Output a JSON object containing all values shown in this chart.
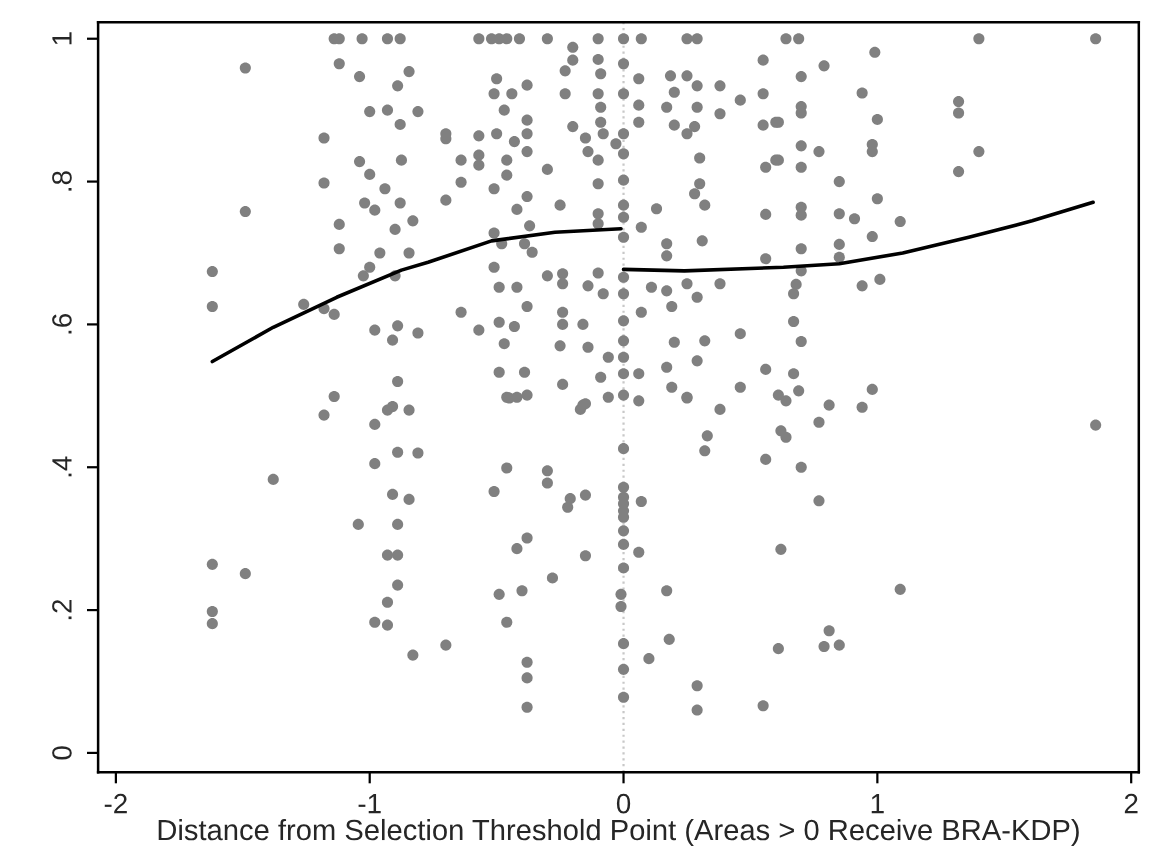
{
  "chart_data": {
    "type": "scatter",
    "xlabel": "Distance from Selection Threshold Point (Areas > 0 Receive BRA-KDP)",
    "xlim": [
      -2.07,
      2.03
    ],
    "xticks": [
      -2,
      -1,
      0,
      1,
      2
    ],
    "ylim": [
      -0.027,
      1.023
    ],
    "yticks": [
      {
        "value": 0,
        "label": "0"
      },
      {
        "value": 0.2,
        "label": ".2"
      },
      {
        "value": 0.4,
        "label": ".4"
      },
      {
        "value": 0.6,
        "label": ".6"
      },
      {
        "value": 0.8,
        "label": ".8"
      },
      {
        "value": 1,
        "label": "1"
      }
    ],
    "ref_lines": [
      {
        "axis": "x",
        "value": 0,
        "label": null,
        "color": "#c8c8c8",
        "line_style": "dotted"
      }
    ],
    "series": [
      {
        "color": "#808080",
        "marker": "circle",
        "x": [
          -1.49,
          -1.14,
          -1.12,
          -1.03,
          -0.93,
          -0.88,
          -1.12,
          -1.04,
          -0.845,
          -0.89,
          -1.0,
          -0.93,
          -0.81,
          -0.88,
          -1.18,
          -1.04,
          -0.875,
          -1.0,
          -1.18,
          -0.94,
          -1.02,
          -0.88,
          -0.98,
          -1.49,
          -0.83,
          -1.12,
          -0.9,
          -1.12,
          -0.96,
          -0.845,
          -1.62,
          -1.0,
          -1.025,
          -0.9,
          -1.62,
          -1.26,
          -1.18,
          -1.14,
          -0.98,
          -0.89,
          -0.91,
          -0.81,
          -0.89,
          -1.14,
          -0.91,
          -1.18,
          -0.93,
          -0.845,
          -0.98,
          -0.89,
          -0.81,
          -0.98,
          -1.38,
          -0.91,
          -0.845,
          -1.045,
          -0.89,
          -1.62,
          -1.49,
          -0.93,
          -0.89,
          -0.89,
          -0.93,
          -1.62,
          -1.62,
          -0.98,
          -0.93,
          -0.83,
          -0.57,
          -0.52,
          -0.49,
          -0.46,
          -0.41,
          -0.3,
          -0.1,
          0,
          0.07,
          0.25,
          0.29,
          -0.2,
          -0.2,
          -0.1,
          -0.5,
          -0.23,
          -0.09,
          0,
          0.06,
          0.185,
          0.25,
          0.29,
          0.38,
          0.55,
          -0.38,
          -0.44,
          -0.51,
          -0.23,
          -0.1,
          0,
          0.2,
          0.46,
          0.55,
          -0.47,
          0.06,
          0.17,
          0.29,
          -0.38,
          -0.09,
          -0.09,
          -0.2,
          0.2,
          0.28,
          0.38,
          0.55,
          0.6,
          -0.7,
          -0.7,
          -0.57,
          -0.5,
          -0.43,
          -0.38,
          -0.15,
          -0.08,
          0,
          0.06,
          0.25,
          -0.64,
          -0.57,
          -0.57,
          -0.46,
          -0.38,
          -0.14,
          -0.1,
          -0.03,
          0,
          0.3,
          0.56,
          0.6,
          -0.64,
          -0.51,
          -0.46,
          -0.3,
          -0.1,
          0,
          0.3,
          0.28,
          -0.7,
          -0.38,
          -0.25,
          -0.42,
          0,
          0.13,
          0.32,
          0.56,
          -0.1,
          -0.1,
          0,
          0.07,
          -0.51,
          -0.37,
          -0.48,
          -0.39,
          -0.36,
          0,
          0.17,
          0.17,
          0.31,
          0.56,
          -0.51,
          -0.3,
          -0.24,
          -0.1,
          0,
          -0.49,
          -0.42,
          -0.24,
          -0.14,
          -0.08,
          0,
          0.11,
          0.17,
          0.25,
          0.29,
          0.38,
          -0.64,
          -0.38,
          -0.24,
          0.07,
          0.19,
          -0.57,
          -0.49,
          -0.43,
          -0.24,
          -0.16,
          0,
          -0.47,
          -0.25,
          -0.14,
          0,
          0.2,
          0.32,
          0.46,
          -0.06,
          0,
          0.29,
          0.56,
          -0.49,
          -0.39,
          -0.24,
          -0.09,
          0,
          0.06,
          0.17,
          -0.45,
          -0.38,
          -0.16,
          0,
          0.19,
          0.25,
          0.46,
          0.64,
          0.69,
          1.4,
          1.86,
          0.99,
          0.79,
          0.7,
          0.94,
          0.7,
          0.7,
          1.32,
          1.32,
          1.0,
          0.61,
          0.7,
          0.77,
          0.98,
          0.98,
          1.4,
          0.61,
          0.7,
          1.32,
          0.85,
          1.0,
          0.7,
          0.7,
          0.85,
          0.91,
          1.09,
          0.98,
          0.7,
          0.85,
          0.85,
          0.7,
          0.94,
          1.01,
          0.68,
          0.67,
          0.67,
          0.7,
          0.67,
          0.61,
          0.69,
          0.98,
          0.64,
          0.81,
          0.94,
          0.77,
          0.62,
          0.64,
          0.7,
          0.77,
          1.86,
          0.62,
          1.09,
          0.61,
          0.79,
          0.85,
          0.81,
          -0.46,
          -0.42,
          -0.17,
          -0.15,
          -0.06,
          0.06,
          0.25,
          0.38,
          0.33,
          0.32,
          0.56,
          0,
          -0.46,
          -0.3,
          -0.3,
          -0.51,
          -0.21,
          -0.22,
          -0.15,
          0,
          0,
          0,
          0,
          0,
          0.07,
          0,
          0,
          -0.38,
          -0.42,
          -0.15,
          0.06,
          0,
          -0.28,
          -0.49,
          -0.4,
          -0.01,
          -0.01,
          0.17,
          -0.46,
          -0.7,
          0,
          0.18,
          -0.38,
          -0.38,
          0.1,
          0,
          0.29,
          0,
          -0.38,
          0.29,
          0.55
        ],
        "values": [
          0.959,
          1,
          1,
          1,
          1,
          1,
          0.965,
          0.947,
          0.954,
          0.934,
          0.898,
          0.9,
          0.898,
          0.88,
          0.861,
          0.828,
          0.83,
          0.81,
          0.798,
          0.79,
          0.77,
          0.77,
          0.76,
          0.758,
          0.745,
          0.74,
          0.733,
          0.706,
          0.7,
          0.7,
          0.674,
          0.68,
          0.668,
          0.668,
          0.625,
          0.628,
          0.622,
          0.614,
          0.592,
          0.598,
          0.578,
          0.588,
          0.52,
          0.499,
          0.485,
          0.473,
          0.48,
          0.48,
          0.46,
          0.421,
          0.42,
          0.405,
          0.383,
          0.362,
          0.355,
          0.32,
          0.32,
          0.264,
          0.251,
          0.277,
          0.277,
          0.235,
          0.211,
          0.198,
          0.181,
          0.183,
          0.179,
          0.137,
          1,
          1,
          1,
          1,
          1,
          1,
          1,
          1,
          1,
          1,
          1,
          0.988,
          0.97,
          0.971,
          0.944,
          0.955,
          0.951,
          0.965,
          0.944,
          0.948,
          0.948,
          0.934,
          0.934,
          0.97,
          0.935,
          0.923,
          0.923,
          0.923,
          0.923,
          0.923,
          0.925,
          0.914,
          0.923,
          0.9,
          0.907,
          0.904,
          0.904,
          0.886,
          0.904,
          0.883,
          0.877,
          0.879,
          0.877,
          0.895,
          0.879,
          0.883,
          0.867,
          0.86,
          0.864,
          0.867,
          0.856,
          0.867,
          0.861,
          0.867,
          0.867,
          0.883,
          0.867,
          0.83,
          0.837,
          0.823,
          0.83,
          0.842,
          0.842,
          0.83,
          0.853,
          0.839,
          0.833,
          0.82,
          0.83,
          0.799,
          0.79,
          0.809,
          0.817,
          0.797,
          0.802,
          0.797,
          0.783,
          0.774,
          0.779,
          0.767,
          0.761,
          0.767,
          0.762,
          0.767,
          0.754,
          0.755,
          0.741,
          0.75,
          0.736,
          0.728,
          0.738,
          0.713,
          0.713,
          0.701,
          0.722,
          0.713,
          0.696,
          0.717,
          0.692,
          0.68,
          0.668,
          0.671,
          0.672,
          0.666,
          0.652,
          0.652,
          0.657,
          0.654,
          0.643,
          0.643,
          0.652,
          0.647,
          0.657,
          0.638,
          0.657,
          0.617,
          0.625,
          0.617,
          0.617,
          0.625,
          0.592,
          0.603,
          0.597,
          0.6,
          0.6,
          0.605,
          0.573,
          0.57,
          0.568,
          0.577,
          0.575,
          0.577,
          0.587,
          0.554,
          0.554,
          0.549,
          0.537,
          0.533,
          0.533,
          0.516,
          0.526,
          0.531,
          0.531,
          0.54,
          0.497,
          0.501,
          0.487,
          0.501,
          0.512,
          0.497,
          0.512,
          1,
          1,
          1,
          1,
          0.981,
          0.962,
          0.947,
          0.924,
          0.905,
          0.896,
          0.912,
          0.896,
          0.887,
          0.883,
          0.85,
          0.842,
          0.852,
          0.842,
          0.842,
          0.83,
          0.82,
          0.814,
          0.8,
          0.776,
          0.764,
          0.753,
          0.755,
          0.748,
          0.744,
          0.723,
          0.706,
          0.712,
          0.694,
          0.675,
          0.654,
          0.663,
          0.656,
          0.643,
          0.604,
          0.576,
          0.531,
          0.501,
          0.507,
          0.509,
          0.493,
          0.487,
          0.484,
          0.463,
          0.451,
          0.442,
          0.4,
          0.353,
          0.459,
          0.285,
          0.229,
          0.146,
          0.149,
          0.151,
          0.171,
          0.498,
          0.498,
          0.481,
          0.489,
          0.498,
          0.493,
          0.498,
          0.481,
          0.444,
          0.423,
          0.411,
          0.426,
          0.399,
          0.395,
          0.378,
          0.366,
          0.356,
          0.344,
          0.361,
          0.372,
          0.358,
          0.349,
          0.339,
          0.33,
          0.352,
          0.311,
          0.292,
          0.301,
          0.286,
          0.276,
          0.281,
          0.259,
          0.245,
          0.222,
          0.227,
          0.222,
          0.205,
          0.227,
          0.183,
          0.151,
          0.153,
          0.159,
          0.127,
          0.105,
          0.132,
          0.117,
          0.094,
          0.078,
          0.064,
          0.06,
          0.066
        ]
      },
      {
        "type": "line",
        "color": "#000000",
        "x": [
          -1.62,
          -1.38,
          -1.13,
          -0.875,
          -0.77,
          -0.52,
          -0.27,
          -0.01
        ],
        "values": [
          0.548,
          0.596,
          0.638,
          0.676,
          0.687,
          0.717,
          0.729,
          0.734
        ]
      },
      {
        "type": "line",
        "color": "#000000",
        "x": [
          0,
          0.24,
          0.63,
          0.85,
          1.1,
          1.36,
          1.61,
          1.85
        ],
        "values": [
          0.677,
          0.675,
          0.68,
          0.685,
          0.7,
          0.722,
          0.745,
          0.771
        ]
      }
    ]
  }
}
